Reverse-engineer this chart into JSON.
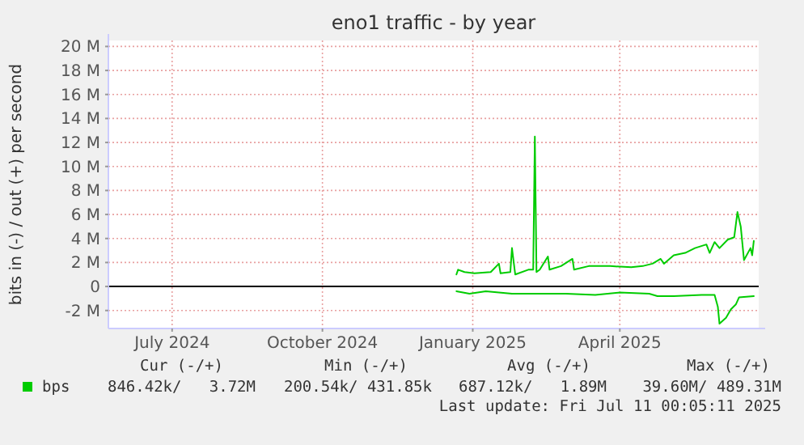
{
  "chart_data": {
    "type": "line",
    "title": "eno1 traffic - by year",
    "ylabel": "bits in (-) / out (+) per second",
    "xlim": [
      "2024-05-23",
      "2025-06-25"
    ],
    "xticks": [
      {
        "value": "2024-07-01",
        "label": "July 2024"
      },
      {
        "value": "2024-10-01",
        "label": "October 2024"
      },
      {
        "value": "2025-01-01",
        "label": "January 2025"
      },
      {
        "value": "2025-04-01",
        "label": "April 2025"
      }
    ],
    "ylim": [
      -3.5,
      20.5
    ],
    "yticks": [
      {
        "value": -2,
        "label": "-2 M"
      },
      0,
      {
        "value": 2,
        "label": "2 M"
      },
      {
        "value": 4,
        "label": "4 M"
      },
      {
        "value": 6,
        "label": "6 M"
      },
      {
        "value": 8,
        "label": "8 M"
      },
      {
        "value": 10,
        "label": "10 M"
      },
      {
        "value": 12,
        "label": "12 M"
      },
      {
        "value": 14,
        "label": "14 M"
      },
      {
        "value": 16,
        "label": "16 M"
      },
      {
        "value": 18,
        "label": "18 M"
      },
      {
        "value": 20,
        "label": "20 M"
      }
    ],
    "grid": true,
    "legend": "bottom left",
    "line_style": "solid",
    "marker": "none",
    "ref_lines": [
      {
        "axis": "y",
        "value": 0,
        "color": "#000000"
      }
    ],
    "series": [
      {
        "name": "bps",
        "color": "#00cc00",
        "x": [
          "2024-12-22",
          "2024-12-23",
          "2024-12-27",
          "2025-01-02",
          "2025-01-12",
          "2025-01-17",
          "2025-01-18",
          "2025-01-24",
          "2025-01-25",
          "2025-01-27",
          "2025-02-04",
          "2025-02-07",
          "2025-02-08",
          "2025-02-09",
          "2025-02-11",
          "2025-02-16",
          "2025-02-17",
          "2025-02-24",
          "2025-03-03",
          "2025-03-04",
          "2025-03-13",
          "2025-03-26",
          "2025-04-08",
          "2025-04-15",
          "2025-04-21",
          "2025-04-26",
          "2025-04-28",
          "2025-05-04",
          "2025-05-11",
          "2025-05-17",
          "2025-05-24",
          "2025-05-26",
          "2025-05-29",
          "2025-06-01",
          "2025-06-06",
          "2025-06-10",
          "2025-06-12",
          "2025-06-14",
          "2025-06-16",
          "2025-06-20",
          "2025-06-21",
          "2025-06-22"
        ],
        "values": [
          1.0,
          1.4,
          1.2,
          1.1,
          1.2,
          1.9,
          1.1,
          1.2,
          3.2,
          1.0,
          1.4,
          1.4,
          12.5,
          1.2,
          1.4,
          2.5,
          1.4,
          1.7,
          2.3,
          1.4,
          1.7,
          1.7,
          1.6,
          1.7,
          1.9,
          2.3,
          1.9,
          2.6,
          2.8,
          3.2,
          3.5,
          2.8,
          3.7,
          3.2,
          3.9,
          4.1,
          6.2,
          5.0,
          2.2,
          3.2,
          2.6,
          3.8
        ]
      },
      {
        "color": "#00cc00",
        "x": [
          "2024-12-22",
          "2024-12-30",
          "2025-01-09",
          "2025-01-25",
          "2025-02-11",
          "2025-02-27",
          "2025-03-17",
          "2025-04-01",
          "2025-04-19",
          "2025-04-24",
          "2025-05-04",
          "2025-05-21",
          "2025-05-29",
          "2025-05-31",
          "2025-06-01",
          "2025-06-05",
          "2025-06-08",
          "2025-06-11",
          "2025-06-13",
          "2025-06-22"
        ],
        "values": [
          -0.4,
          -0.6,
          -0.4,
          -0.6,
          -0.6,
          -0.6,
          -0.7,
          -0.5,
          -0.6,
          -0.8,
          -0.8,
          -0.7,
          -0.7,
          -1.7,
          -3.1,
          -2.6,
          -1.9,
          -1.5,
          -0.9,
          -0.8
        ]
      }
    ],
    "annotations": [
      "Cur (-/+)",
      "Min (-/+)",
      "Avg (-/+)",
      "Max (-/+)",
      "846.42k/   3.72M",
      "200.54k/ 431.85k",
      "687.12k/   1.89M",
      "39.60M/ 489.31M",
      "Last update: Fri Jul 11 00:05:11 2025"
    ]
  }
}
